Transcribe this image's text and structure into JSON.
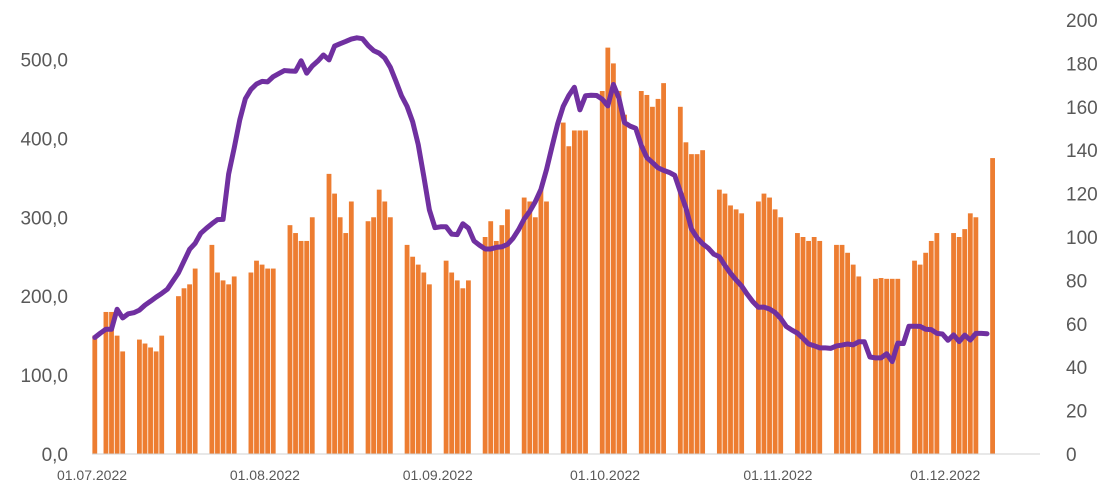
{
  "chart_data": {
    "type": "bar",
    "title": "",
    "xlabel": "",
    "ylabel": "",
    "y2label": "",
    "x_start": "01.07.2022",
    "x_end": "17.12.2022",
    "xticks": [
      "01.07.2022",
      "01.08.2022",
      "01.09.2022",
      "01.10.2022",
      "01.11.2022",
      "01.12.2022"
    ],
    "yticks_left": [
      "0,0",
      "100,0",
      "200,0",
      "300,0",
      "400,0",
      "500,0"
    ],
    "yticks_right": [
      "0",
      "20",
      "40",
      "60",
      "80",
      "100",
      "120",
      "140",
      "160",
      "180",
      "200"
    ],
    "ylim_left": [
      0,
      550
    ],
    "ylim_right": [
      0,
      200
    ],
    "grid": false,
    "legend": "none",
    "colors": {
      "bars": "#ED7D31",
      "line": "#7030A0",
      "text": "#595959"
    },
    "series": [
      {
        "type": "bar",
        "axis": "left",
        "values": [
          150,
          0,
          180,
          180,
          150,
          130,
          0,
          0,
          145,
          140,
          135,
          130,
          150,
          0,
          0,
          200,
          210,
          215,
          235,
          0,
          0,
          265,
          230,
          220,
          215,
          225,
          0,
          0,
          230,
          245,
          240,
          235,
          235,
          0,
          0,
          290,
          280,
          270,
          270,
          300,
          0,
          0,
          355,
          330,
          300,
          280,
          320,
          0,
          0,
          295,
          300,
          335,
          320,
          300,
          0,
          0,
          265,
          250,
          240,
          230,
          215,
          0,
          0,
          245,
          230,
          220,
          210,
          220,
          0,
          0,
          275,
          295,
          270,
          290,
          310,
          0,
          0,
          325,
          320,
          300,
          335,
          320,
          0,
          0,
          420,
          390,
          410,
          410,
          410,
          0,
          0,
          460,
          515,
          495,
          460,
          430,
          0,
          0,
          460,
          455,
          440,
          450,
          470,
          0,
          0,
          440,
          395,
          380,
          380,
          385,
          0,
          0,
          335,
          330,
          315,
          310,
          305,
          0,
          0,
          320,
          330,
          325,
          310,
          300,
          0,
          0,
          280,
          275,
          270,
          275,
          270,
          0,
          0,
          265,
          265,
          255,
          240,
          225,
          0,
          0,
          222,
          223,
          222,
          222,
          222,
          0,
          0,
          245,
          240,
          255,
          270,
          280,
          0,
          0,
          280,
          275,
          285,
          305,
          300,
          0,
          0,
          375
        ]
      },
      {
        "type": "line",
        "axis": "right",
        "values": [
          53.7,
          55.7,
          57.5,
          57.5,
          66.7,
          62.7,
          64.6,
          65.1,
          66.3,
          68.6,
          70.4,
          72.3,
          74,
          75.9,
          79.7,
          83.5,
          88.9,
          94.3,
          97.1,
          101.7,
          104,
          106.1,
          108,
          108.1,
          129,
          141,
          154,
          163.7,
          168,
          170.5,
          171.7,
          171.5,
          173.9,
          175.3,
          176.7,
          176.5,
          176.4,
          181.2,
          175.5,
          178.8,
          181.1,
          183.9,
          181.6,
          188,
          189.1,
          190.1,
          191.2,
          191.8,
          191.4,
          188.3,
          185.9,
          184.7,
          182.5,
          178.2,
          171.8,
          165.1,
          160.2,
          153.1,
          142.6,
          127.9,
          112.5,
          104.3,
          104.7,
          104.7,
          101.3,
          101.1,
          106.1,
          104.1,
          98.2,
          96.2,
          94.5,
          94.5,
          95.2,
          95.5,
          96.6,
          99.4,
          103.4,
          108.3,
          111.8,
          116.3,
          121.9,
          131,
          141.7,
          152.1,
          160.2,
          165.2,
          169,
          158.6,
          165.1,
          165.3,
          165.2,
          163.5,
          160.4,
          170.3,
          163.9,
          152.7,
          151.1,
          150.1,
          142.2,
          136.6,
          134.3,
          131.9,
          130.7,
          129.8,
          128.4,
          120.8,
          113.4,
          103.7,
          99.7,
          96.9,
          94.9,
          92.1,
          90.9,
          86.9,
          83.3,
          80.2,
          77.4,
          73.6,
          70.2,
          67.6,
          67.7,
          66.8,
          65.2,
          62.5,
          58.8,
          57.1,
          55.7,
          53.3,
          50.7,
          49.9,
          48.9,
          48.9,
          48.7,
          49.8,
          50.2,
          50.7,
          50.3,
          51.7,
          51.7,
          44.7,
          44.3,
          44.3,
          46.2,
          42.6,
          51.1,
          50.9,
          58.9,
          58.9,
          58.8,
          57.5,
          57.3,
          55.6,
          55.3,
          52.4,
          54.9,
          51.8,
          54.8,
          52.5,
          55.6,
          55.6,
          55.4
        ]
      }
    ]
  }
}
